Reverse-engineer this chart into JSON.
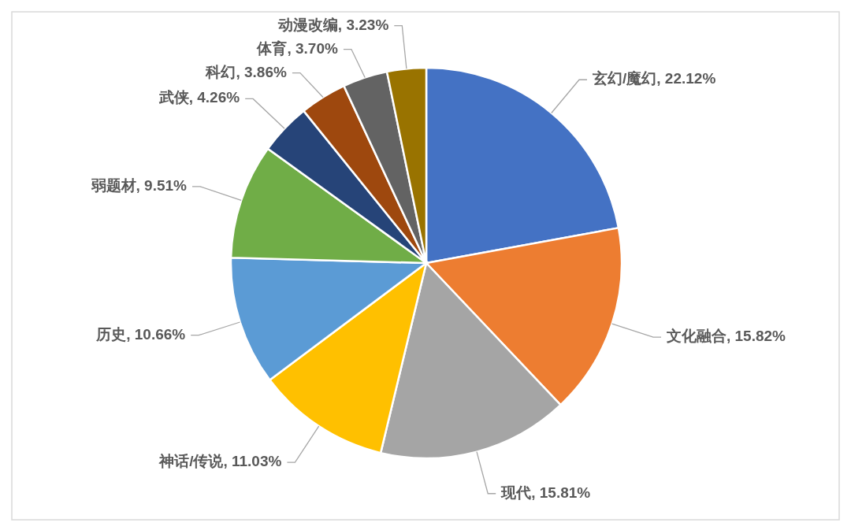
{
  "chart_data": {
    "type": "pie",
    "categories": [
      "玄幻/魔幻",
      "文化融合",
      "现代",
      "神话/传说",
      "历史",
      "弱题材",
      "武侠",
      "科幻",
      "体育",
      "动漫改编"
    ],
    "values": [
      22.12,
      15.82,
      15.81,
      11.03,
      10.66,
      9.51,
      4.26,
      3.86,
      3.7,
      3.23
    ],
    "value_labels": [
      "22.12%",
      "15.82%",
      "15.81%",
      "11.03%",
      "10.66%",
      "9.51%",
      "4.26%",
      "3.86%",
      "3.70%",
      "3.23%"
    ],
    "colors": [
      "#4472c4",
      "#ed7d31",
      "#a5a5a5",
      "#ffc000",
      "#5b9bd5",
      "#70ad47",
      "#264478",
      "#9e480e",
      "#636363",
      "#997300"
    ]
  }
}
